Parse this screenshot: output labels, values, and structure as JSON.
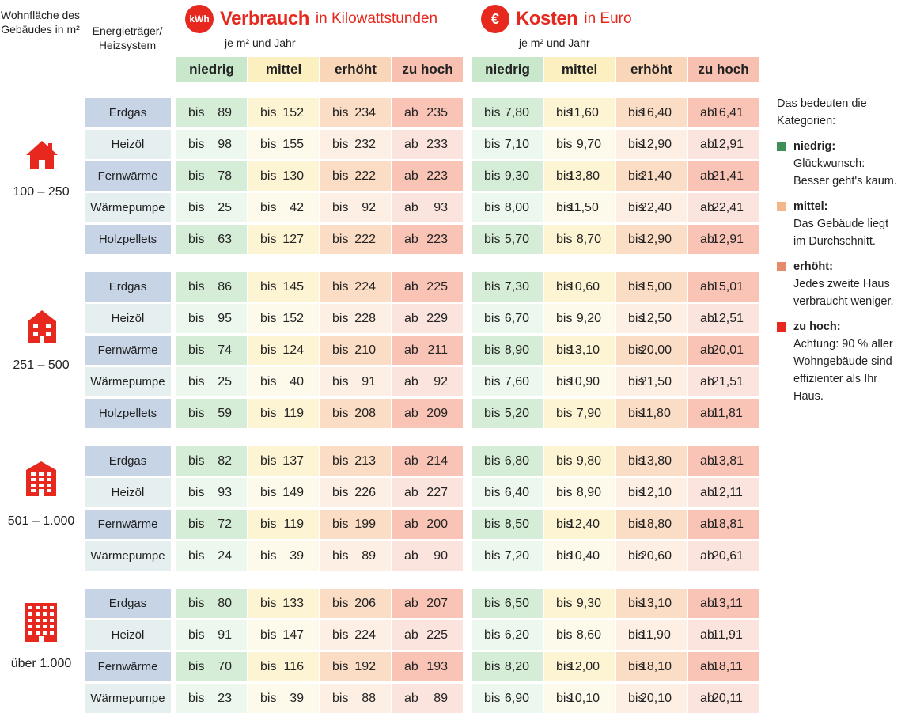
{
  "header": {
    "area_label": "Wohnfläche des Gebäudes in m²",
    "energy_label": "Energieträger/ Heizsystem"
  },
  "consumption": {
    "icon": "kWh",
    "title": "Verbrauch",
    "title_suffix": "in Kilowattstunden",
    "subtitle": "je m² und Jahr"
  },
  "costs": {
    "icon": "€",
    "title": "Kosten",
    "title_suffix": "in Euro",
    "subtitle": "je m² und Jahr"
  },
  "categories": [
    {
      "label": "niedrig",
      "color": "#c9e8cb",
      "cell_color": "#d5edd7"
    },
    {
      "label": "mittel",
      "color": "#fcefc0",
      "cell_color": "#fdf4d3"
    },
    {
      "label": "erhöht",
      "color": "#fad6b9",
      "cell_color": "#fbdcc4"
    },
    {
      "label": "zu hoch",
      "color": "#f8c0b0",
      "cell_color": "#f9c4b5"
    }
  ],
  "groups": [
    {
      "area": "100 – 250",
      "icon": "single-house-icon",
      "rows": [
        {
          "energy": "Erdgas",
          "kwh": [
            "bis 89",
            "bis 152",
            "bis 234",
            "ab 235"
          ],
          "eur": [
            "bis 7,80",
            "bis 11,60",
            "bis 16,40",
            "ab 16,41"
          ]
        },
        {
          "energy": "Heizöl",
          "kwh": [
            "bis 98",
            "bis 155",
            "bis 232",
            "ab 233"
          ],
          "eur": [
            "bis 7,10",
            "bis 9,70",
            "bis 12,90",
            "ab 12,91"
          ]
        },
        {
          "energy": "Fernwärme",
          "kwh": [
            "bis 78",
            "bis 130",
            "bis 222",
            "ab 223"
          ],
          "eur": [
            "bis 9,30",
            "bis 13,80",
            "bis 21,40",
            "ab 21,41"
          ]
        },
        {
          "energy": "Wärmepumpe",
          "kwh": [
            "bis 25",
            "bis 42",
            "bis 92",
            "ab 93"
          ],
          "eur": [
            "bis 8,00",
            "bis 11,50",
            "bis 22,40",
            "ab 22,41"
          ]
        },
        {
          "energy": "Holzpellets",
          "kwh": [
            "bis 63",
            "bis 127",
            "bis 222",
            "ab 223"
          ],
          "eur": [
            "bis 5,70",
            "bis 8,70",
            "bis 12,90",
            "ab 12,91"
          ]
        }
      ]
    },
    {
      "area": "251 – 500",
      "icon": "multi-family-house-icon",
      "rows": [
        {
          "energy": "Erdgas",
          "kwh": [
            "bis 86",
            "bis 145",
            "bis 224",
            "ab 225"
          ],
          "eur": [
            "bis 7,30",
            "bis 10,60",
            "bis 15,00",
            "ab 15,01"
          ]
        },
        {
          "energy": "Heizöl",
          "kwh": [
            "bis 95",
            "bis 152",
            "bis 228",
            "ab 229"
          ],
          "eur": [
            "bis 6,70",
            "bis 9,20",
            "bis 12,50",
            "ab 12,51"
          ]
        },
        {
          "energy": "Fernwärme",
          "kwh": [
            "bis 74",
            "bis 124",
            "bis 210",
            "ab 211"
          ],
          "eur": [
            "bis 8,90",
            "bis 13,10",
            "bis 20,00",
            "ab 20,01"
          ]
        },
        {
          "energy": "Wärmepumpe",
          "kwh": [
            "bis 25",
            "bis 40",
            "bis 91",
            "ab 92"
          ],
          "eur": [
            "bis 7,60",
            "bis 10,90",
            "bis 21,50",
            "ab 21,51"
          ]
        },
        {
          "energy": "Holzpellets",
          "kwh": [
            "bis 59",
            "bis 119",
            "bis 208",
            "ab 209"
          ],
          "eur": [
            "bis 5,20",
            "bis 7,90",
            "bis 11,80",
            "ab 11,81"
          ]
        }
      ]
    },
    {
      "area": "501 – 1.000",
      "icon": "apartment-building-icon",
      "rows": [
        {
          "energy": "Erdgas",
          "kwh": [
            "bis 82",
            "bis 137",
            "bis 213",
            "ab 214"
          ],
          "eur": [
            "bis 6,80",
            "bis 9,80",
            "bis 13,80",
            "ab 13,81"
          ]
        },
        {
          "energy": "Heizöl",
          "kwh": [
            "bis 93",
            "bis 149",
            "bis 226",
            "ab 227"
          ],
          "eur": [
            "bis 6,40",
            "bis 8,90",
            "bis 12,10",
            "ab 12,11"
          ]
        },
        {
          "energy": "Fernwärme",
          "kwh": [
            "bis 72",
            "bis 119",
            "bis 199",
            "ab 200"
          ],
          "eur": [
            "bis 8,50",
            "bis 12,40",
            "bis 18,80",
            "ab 18,81"
          ]
        },
        {
          "energy": "Wärmepumpe",
          "kwh": [
            "bis 24",
            "bis 39",
            "bis 89",
            "ab 90"
          ],
          "eur": [
            "bis 7,20",
            "bis 10,40",
            "bis 20,60",
            "ab 20,61"
          ]
        }
      ]
    },
    {
      "area": "über 1.000",
      "icon": "high-rise-building-icon",
      "rows": [
        {
          "energy": "Erdgas",
          "kwh": [
            "bis 80",
            "bis 133",
            "bis 206",
            "ab 207"
          ],
          "eur": [
            "bis 6,50",
            "bis 9,30",
            "bis 13,10",
            "ab 13,11"
          ]
        },
        {
          "energy": "Heizöl",
          "kwh": [
            "bis 91",
            "bis 147",
            "bis 224",
            "ab 225"
          ],
          "eur": [
            "bis 6,20",
            "bis 8,60",
            "bis 11,90",
            "ab 11,91"
          ]
        },
        {
          "energy": "Fernwärme",
          "kwh": [
            "bis 70",
            "bis 116",
            "bis 192",
            "ab 193"
          ],
          "eur": [
            "bis 8,20",
            "bis 12,00",
            "bis 18,10",
            "ab 18,11"
          ]
        },
        {
          "energy": "Wärmepumpe",
          "kwh": [
            "bis 23",
            "bis 39",
            "bis 88",
            "ab 89"
          ],
          "eur": [
            "bis 6,90",
            "bis 10,10",
            "bis 20,10",
            "ab 20,11"
          ]
        }
      ]
    }
  ],
  "legend": {
    "title": "Das bedeuten die Kategorien:",
    "items": [
      {
        "label": "niedrig:",
        "text": "Glückwunsch: Besser geht's kaum.",
        "color": "#3e8f57"
      },
      {
        "label": "mittel:",
        "text": "Das Gebäude liegt im Durchschnitt.",
        "color": "#f3b78a"
      },
      {
        "label": "erhöht:",
        "text": "Jedes zweite Haus verbraucht weniger.",
        "color": "#e58a6a"
      },
      {
        "label": "zu hoch:",
        "text": "Achtung: 90 % aller Wohngebäude sind effizienter als Ihr Haus.",
        "color": "#e7281e"
      }
    ]
  },
  "colors": {
    "accent": "#e7281e",
    "label_blue": "#c6d4e6",
    "label_light": "#e5eff0"
  }
}
